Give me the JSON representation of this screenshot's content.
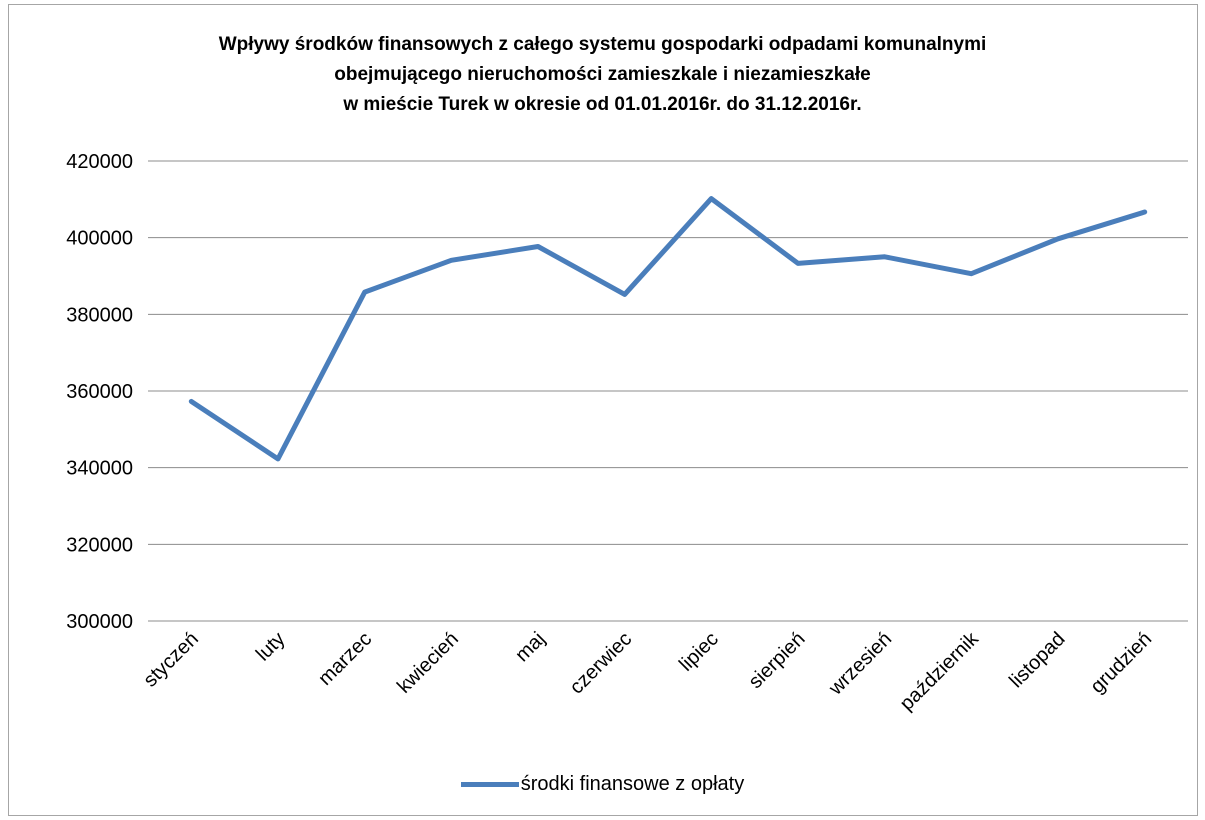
{
  "chart_data": {
    "type": "line",
    "title_lines": [
      "Wpływy środków finansowych z całego systemu gospodarki odpadami komunalnymi",
      "obejmującego nieruchomości zamieszkale i niezamieszkałe",
      "w mieście Turek w okresie od 01.01.2016r. do 31.12.2016r."
    ],
    "categories": [
      "styczeń",
      "luty",
      "marzec",
      "kwiecień",
      "maj",
      "czerwiec",
      "lipiec",
      "sierpień",
      "wrzesień",
      "październik",
      "listopad",
      "grudzień"
    ],
    "series": [
      {
        "name": "środki finansowe z opłaty",
        "values": [
          357300,
          342300,
          385800,
          394100,
          397700,
          385200,
          410200,
          393300,
          395000,
          390600,
          399700,
          406700
        ],
        "color": "#4a7ebb"
      }
    ],
    "ylim": [
      300000,
      420000
    ],
    "yticks": [
      420000,
      400000,
      380000,
      360000,
      340000,
      320000,
      300000
    ],
    "grid": true,
    "legend_position": "bottom"
  }
}
